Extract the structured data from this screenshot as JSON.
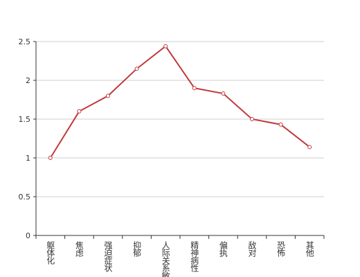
{
  "chart_data": {
    "type": "line",
    "categories": [
      "躯体化",
      "焦虑",
      "强迫症状",
      "抑郁",
      "人际关系敏感",
      "精神病性",
      "偏执",
      "敌对",
      "恐怖",
      "其他"
    ],
    "values": [
      1.0,
      1.6,
      1.8,
      2.15,
      2.44,
      1.9,
      1.83,
      1.5,
      1.43,
      1.14
    ],
    "color": "#c0393b",
    "ylim": [
      0,
      2.5
    ],
    "yticks": [
      0,
      0.5,
      1,
      1.5,
      2,
      2.5
    ],
    "grid": true
  }
}
